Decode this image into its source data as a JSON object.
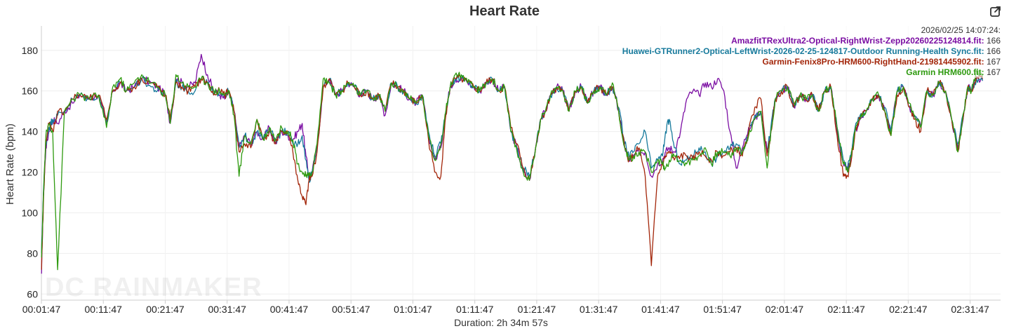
{
  "title": "Heart Rate",
  "y_axis_title": "Heart Rate (bpm)",
  "x_axis_title": "Duration: 2h 34m 57s",
  "watermark": "DC RAINMAKER",
  "export_icon": "export-icon",
  "tooltip": {
    "timestamp": "2026/02/25 14:07:24:",
    "rows": [
      {
        "label": "AmazfitTRexUltra2-Optical-RightWrist-Zepp20260225124814.fit:",
        "value": "166",
        "color": "#7b0ea3"
      },
      {
        "label": "Huawei-GTRunner2-Optical-LeftWrist-2026-02-25-124817-Outdoor Running-Health Sync.fit:",
        "value": "166",
        "color": "#177a9c"
      },
      {
        "label": "Garmin-Fenix8Pro-HRM600-RightHand-21981445902.fit:",
        "value": "167",
        "color": "#a3260a"
      },
      {
        "label": "Garmin HRM600.fit:",
        "value": "167",
        "color": "#2e9a0f"
      }
    ]
  },
  "chart_data": {
    "type": "line",
    "title": "Heart Rate",
    "xlabel": "Duration: 2h 34m 57s",
    "ylabel": "Heart Rate (bpm)",
    "x_unit": "minutes",
    "xlim": [
      1.78,
      156.7
    ],
    "ylim": [
      57,
      192
    ],
    "yticks": [
      60,
      80,
      100,
      120,
      140,
      160,
      180
    ],
    "xtick_labels": [
      "00:01:47",
      "00:11:47",
      "00:21:47",
      "00:31:47",
      "00:41:47",
      "00:51:47",
      "01:01:47",
      "01:11:47",
      "01:21:47",
      "01:31:47",
      "01:41:47",
      "01:51:47",
      "02:01:47",
      "02:11:47",
      "02:21:47",
      "02:31:47"
    ],
    "xtick_values": [
      1.78,
      11.78,
      21.78,
      31.78,
      41.78,
      51.78,
      61.78,
      71.78,
      81.78,
      91.78,
      101.78,
      111.78,
      121.78,
      131.78,
      141.78,
      151.78
    ],
    "grid": true,
    "legend": "top-right",
    "base_x": [
      1.8,
      2.1,
      2.5,
      3.0,
      3.6,
      4.4,
      5.5,
      6.8,
      8.0,
      9.5,
      11.0,
      12.3,
      13.3,
      14.5,
      15.5,
      16.8,
      18.0,
      19.5,
      20.5,
      21.8,
      22.6,
      23.5,
      24.5,
      25.5,
      26.6,
      27.6,
      28.6,
      29.6,
      30.6,
      31.4,
      32.1,
      32.9,
      33.7,
      34.6,
      35.6,
      36.6,
      37.6,
      38.6,
      39.6,
      40.6,
      41.6,
      42.4,
      43.2,
      43.9,
      44.5,
      45.0,
      45.5,
      46.3,
      47.3,
      48.3,
      49.3,
      50.3,
      51.3,
      52.3,
      53.3,
      54.3,
      55.3,
      56.3,
      57.3,
      58.3,
      59.3,
      60.3,
      61.3,
      62.3,
      63.3,
      64.3,
      65.3,
      66.3,
      67.1,
      67.8,
      68.6,
      69.6,
      70.6,
      71.6,
      72.6,
      73.6,
      74.6,
      75.6,
      76.6,
      77.6,
      78.6,
      79.6,
      80.6,
      81.6,
      82.4,
      83.2,
      84.0,
      85.0,
      86.0,
      87.0,
      88.0,
      89.0,
      90.0,
      91.0,
      92.0,
      93.0,
      94.0,
      95.0,
      96.0,
      96.7,
      97.4,
      98.3,
      99.3,
      100.3,
      101.3,
      102.1,
      102.6,
      103.2,
      104.0,
      105.0,
      106.0,
      107.0,
      108.0,
      109.0,
      110.0,
      111.0,
      112.0,
      113.0,
      114.0,
      115.0,
      116.0,
      117.0,
      118.0,
      119.0,
      119.6,
      120.3,
      121.3,
      122.3,
      123.3,
      124.3,
      125.3,
      126.3,
      127.3,
      128.3,
      129.3,
      130.3,
      131.3,
      132.0,
      132.6,
      133.2,
      134.0,
      135.0,
      136.0,
      137.0,
      138.0,
      139.0,
      140.0,
      141.0,
      142.0,
      142.8,
      143.8,
      144.8,
      145.8,
      146.8,
      147.8,
      148.8,
      149.8,
      150.8,
      151.4,
      152.0,
      152.8,
      153.8,
      154.8,
      155.8,
      156.7
    ],
    "series": [
      {
        "name": "AmazfitTRexUltra2-Optical-RightWrist-Zepp20260225124814.fit",
        "color": "#7b0ea3",
        "values": [
          70,
          108,
          132,
          140,
          146,
          144,
          150,
          154,
          158,
          156,
          158,
          144,
          160,
          164,
          160,
          162,
          166,
          164,
          162,
          158,
          144,
          166,
          164,
          162,
          164,
          178,
          168,
          160,
          158,
          156,
          160,
          150,
          132,
          138,
          134,
          140,
          136,
          142,
          134,
          140,
          138,
          136,
          140,
          144,
          128,
          118,
          120,
          132,
          162,
          166,
          158,
          160,
          164,
          162,
          158,
          160,
          156,
          158,
          148,
          164,
          162,
          160,
          156,
          154,
          158,
          138,
          126,
          132,
          150,
          162,
          166,
          166,
          164,
          162,
          160,
          164,
          166,
          160,
          162,
          140,
          132,
          120,
          116,
          132,
          146,
          150,
          158,
          162,
          160,
          150,
          160,
          162,
          154,
          160,
          162,
          158,
          162,
          150,
          132,
          126,
          128,
          130,
          130,
          118,
          124,
          126,
          130,
          132,
          130,
          140,
          156,
          160,
          158,
          164,
          162,
          166,
          160,
          140,
          122,
          132,
          142,
          146,
          150,
          130,
          140,
          156,
          160,
          162,
          152,
          158,
          156,
          158,
          150,
          160,
          162,
          140,
          124,
          120,
          128,
          140,
          146,
          150,
          156,
          158,
          150,
          140,
          160,
          162,
          152,
          148,
          142,
          160,
          158,
          164,
          160,
          146,
          132,
          150,
          162,
          160,
          166,
          165
        ]
      },
      {
        "name": "Huawei-GTRunner2-Optical-LeftWrist-2026-02-25-124817-Outdoor Running-Health Sync.fit",
        "color": "#177a9c",
        "values": [
          80,
          110,
          134,
          142,
          146,
          148,
          150,
          156,
          158,
          156,
          158,
          144,
          160,
          164,
          160,
          162,
          166,
          162,
          160,
          158,
          146,
          164,
          162,
          160,
          160,
          166,
          164,
          158,
          160,
          158,
          160,
          150,
          132,
          138,
          134,
          140,
          136,
          142,
          136,
          140,
          140,
          134,
          134,
          138,
          126,
          116,
          120,
          132,
          162,
          166,
          158,
          160,
          164,
          162,
          158,
          160,
          156,
          158,
          150,
          164,
          162,
          160,
          156,
          154,
          158,
          140,
          128,
          134,
          150,
          162,
          166,
          166,
          164,
          162,
          160,
          164,
          166,
          160,
          162,
          140,
          132,
          122,
          118,
          132,
          146,
          150,
          158,
          162,
          160,
          150,
          160,
          162,
          154,
          160,
          162,
          158,
          162,
          152,
          134,
          128,
          130,
          134,
          140,
          122,
          126,
          128,
          140,
          146,
          132,
          124,
          126,
          128,
          132,
          130,
          124,
          128,
          130,
          132,
          134,
          130,
          140,
          148,
          150,
          130,
          142,
          156,
          160,
          162,
          152,
          158,
          156,
          158,
          150,
          160,
          162,
          142,
          126,
          122,
          130,
          142,
          148,
          150,
          156,
          158,
          152,
          140,
          160,
          162,
          152,
          148,
          142,
          160,
          158,
          164,
          160,
          146,
          134,
          150,
          162,
          160,
          166,
          165
        ]
      },
      {
        "name": "Garmin-Fenix8Pro-HRM600-RightHand-21981445902.fit",
        "color": "#a3260a",
        "values": [
          72,
          104,
          136,
          144,
          140,
          150,
          150,
          156,
          158,
          156,
          158,
          146,
          160,
          164,
          160,
          162,
          166,
          164,
          162,
          158,
          146,
          164,
          162,
          160,
          162,
          166,
          164,
          158,
          160,
          158,
          160,
          150,
          130,
          134,
          132,
          146,
          136,
          140,
          134,
          140,
          140,
          130,
          116,
          108,
          104,
          116,
          118,
          130,
          162,
          166,
          158,
          160,
          164,
          162,
          158,
          160,
          156,
          158,
          150,
          164,
          162,
          160,
          156,
          154,
          158,
          136,
          120,
          118,
          148,
          162,
          166,
          166,
          164,
          162,
          160,
          164,
          166,
          160,
          162,
          142,
          134,
          122,
          116,
          132,
          146,
          150,
          158,
          162,
          160,
          150,
          160,
          162,
          154,
          160,
          162,
          158,
          162,
          150,
          132,
          126,
          128,
          132,
          118,
          74,
          118,
          124,
          128,
          130,
          126,
          128,
          128,
          126,
          130,
          128,
          126,
          130,
          128,
          130,
          132,
          128,
          140,
          152,
          156,
          128,
          140,
          156,
          160,
          162,
          152,
          158,
          156,
          158,
          150,
          160,
          162,
          138,
          118,
          118,
          126,
          140,
          146,
          150,
          156,
          158,
          150,
          138,
          158,
          162,
          152,
          146,
          140,
          160,
          158,
          164,
          160,
          146,
          130,
          150,
          162,
          160,
          167,
          166
        ]
      },
      {
        "name": "Garmin HRM600.fit",
        "color": "#2e9a0f",
        "values": [
          78,
          108,
          138,
          144,
          140,
          72,
          150,
          156,
          158,
          156,
          158,
          142,
          162,
          166,
          160,
          164,
          168,
          164,
          162,
          158,
          144,
          168,
          164,
          162,
          162,
          166,
          164,
          160,
          160,
          158,
          160,
          148,
          118,
          138,
          134,
          146,
          136,
          142,
          136,
          142,
          140,
          136,
          124,
          120,
          118,
          118,
          120,
          134,
          166,
          164,
          158,
          160,
          164,
          162,
          158,
          160,
          156,
          158,
          150,
          164,
          162,
          160,
          156,
          154,
          158,
          138,
          126,
          134,
          150,
          162,
          168,
          168,
          164,
          162,
          160,
          164,
          166,
          160,
          162,
          140,
          130,
          120,
          116,
          132,
          146,
          150,
          158,
          162,
          160,
          150,
          160,
          162,
          154,
          160,
          162,
          158,
          164,
          150,
          132,
          126,
          128,
          130,
          130,
          120,
          126,
          124,
          122,
          126,
          128,
          126,
          124,
          126,
          128,
          132,
          124,
          130,
          130,
          128,
          132,
          130,
          138,
          146,
          150,
          122,
          140,
          156,
          160,
          162,
          154,
          158,
          156,
          158,
          150,
          160,
          162,
          142,
          124,
          120,
          128,
          140,
          146,
          150,
          156,
          158,
          150,
          138,
          160,
          162,
          154,
          148,
          142,
          160,
          158,
          164,
          160,
          146,
          130,
          150,
          162,
          160,
          170,
          167
        ]
      }
    ]
  }
}
